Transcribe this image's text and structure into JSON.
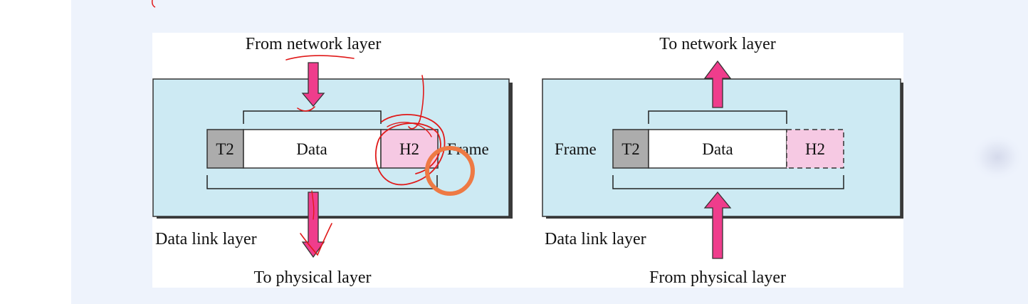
{
  "sender": {
    "top_label": "From network layer",
    "bottom_label": "To physical layer",
    "layer_label": "Data link layer",
    "frame_label": "Frame",
    "trailer": "T2",
    "data": "Data",
    "header": "H2"
  },
  "receiver": {
    "top_label": "To network layer",
    "bottom_label": "From physical layer",
    "layer_label": "Data link layer",
    "frame_label": "Frame",
    "trailer": "T2",
    "data": "Data",
    "header": "H2"
  },
  "colors": {
    "layer_fill": "#cdeaf3",
    "arrow_fill": "#ef3d8c",
    "header_fill": "#f6c9e3",
    "trailer_fill": "#acacac",
    "annotation_red": "#e01919",
    "annotation_orange": "#ee7a44"
  },
  "icons": {
    "arrow": "block-arrow",
    "annotation": "freehand-pen-marks"
  }
}
